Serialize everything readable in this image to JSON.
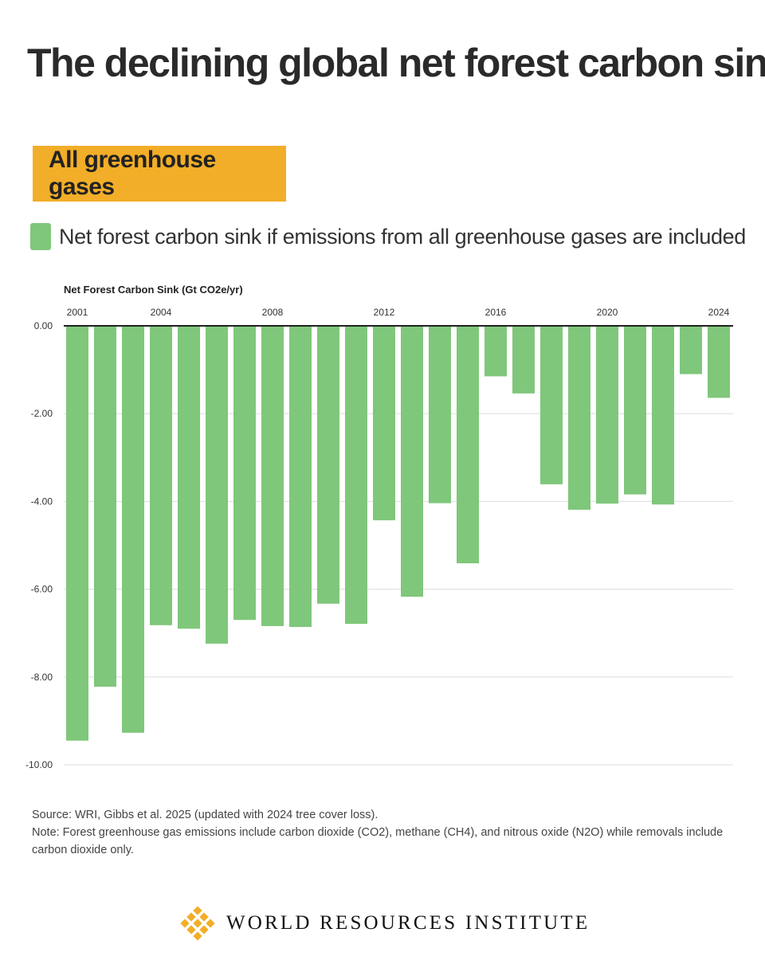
{
  "header": {
    "title": "The declining global net forest carbon sink",
    "tag": "All greenhouse gases",
    "legend_label": "Net forest carbon sink if emissions from all greenhouse gases are included"
  },
  "chart_data": {
    "type": "bar",
    "ylabel": "Net Forest Carbon Sink (Gt CO2e/yr)",
    "categories": [
      2001,
      2002,
      2003,
      2004,
      2005,
      2006,
      2007,
      2008,
      2009,
      2010,
      2011,
      2012,
      2013,
      2014,
      2015,
      2016,
      2017,
      2018,
      2019,
      2020,
      2021,
      2022,
      2023,
      2024
    ],
    "x_tick_labels": [
      "2001",
      "2004",
      "2008",
      "2012",
      "2016",
      "2020",
      "2024"
    ],
    "y_ticks": [
      0,
      -2,
      -4,
      -6,
      -8,
      -10
    ],
    "y_tick_labels": [
      "0.00",
      "-2.00",
      "-4.00",
      "-6.00",
      "-8.00",
      "-10.00"
    ],
    "ylim": [
      -10,
      0
    ],
    "grid": true,
    "series": [
      {
        "values": [
          -9.45,
          -8.22,
          -9.27,
          -6.82,
          -6.9,
          -7.24,
          -6.7,
          -6.84,
          -6.86,
          -6.33,
          -6.79,
          -4.43,
          -6.17,
          -4.04,
          -5.41,
          -1.15,
          -1.54,
          -3.61,
          -4.19,
          -4.05,
          -3.84,
          -4.07,
          -1.1,
          -1.64
        ],
        "color": "#7fc77b"
      }
    ]
  },
  "source": {
    "line1": "Source: WRI, Gibbs et al. 2025 (updated with 2024 tree cover loss).",
    "line2": "Note: Forest greenhouse gas emissions include carbon dioxide (CO2), methane (CH4), and nitrous oxide (N2O) while removals include carbon dioxide only."
  },
  "footer": {
    "org_name": "WORLD RESOURCES INSTITUTE",
    "logo_icon": "wri-logo-icon",
    "logo_color": "#f2ae28"
  }
}
